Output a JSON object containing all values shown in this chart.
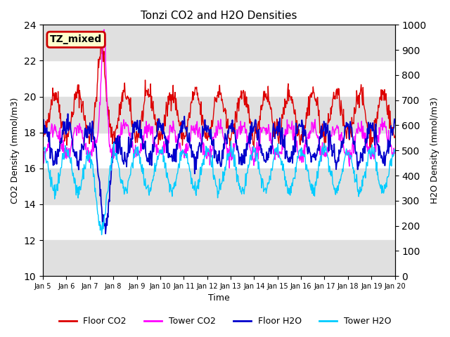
{
  "title": "Tonzi CO2 and H2O Densities",
  "xlabel": "Time",
  "ylabel_left": "CO2 Density (mmol/m3)",
  "ylabel_right": "H2O Density (mmol/m3)",
  "ylim_left": [
    10,
    24
  ],
  "ylim_right": [
    0,
    1000
  ],
  "yticks_left": [
    10,
    12,
    14,
    16,
    18,
    20,
    22,
    24
  ],
  "yticks_right": [
    0,
    100,
    200,
    300,
    400,
    500,
    600,
    700,
    800,
    900,
    1000
  ],
  "xtick_labels": [
    "Jan 5",
    "Jan 6",
    "Jan 7",
    "Jan 8",
    "Jan 9",
    "Jan 10",
    "Jan 11",
    "Jan 12",
    "Jan 13",
    "Jan 14",
    "Jan 15",
    "Jan 16",
    "Jan 17",
    "Jan 18",
    "Jan 19",
    "Jan 20"
  ],
  "colors": {
    "floor_co2": "#dd0000",
    "tower_co2": "#ff00ff",
    "floor_h2o": "#0000cc",
    "tower_h2o": "#00ccff"
  },
  "annotation_text": "TZ_mixed",
  "annotation_bg": "#ffffcc",
  "annotation_edge": "#cc0000",
  "bg_band_color": "#e0e0e0",
  "legend_labels": [
    "Floor CO2",
    "Tower CO2",
    "Floor H2O",
    "Tower H2O"
  ],
  "n_days": 15,
  "pts_per_day": 48,
  "seed": 42
}
